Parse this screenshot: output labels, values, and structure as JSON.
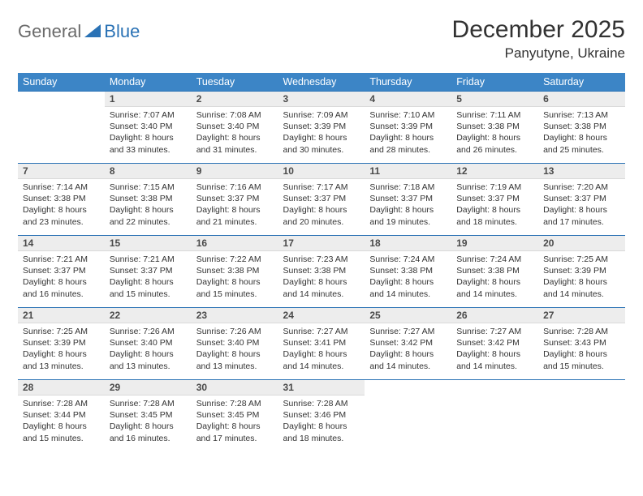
{
  "logo": {
    "part1": "General",
    "part2": "Blue"
  },
  "title": "December 2025",
  "location": "Panyutyne, Ukraine",
  "colors": {
    "header_bg": "#3c85c6",
    "header_text": "#ffffff",
    "rule": "#2a72b5",
    "daynum_bg": "#ededed",
    "text": "#333333"
  },
  "weekdays": [
    "Sunday",
    "Monday",
    "Tuesday",
    "Wednesday",
    "Thursday",
    "Friday",
    "Saturday"
  ],
  "weeks": [
    [
      null,
      {
        "n": "1",
        "sr": "7:07 AM",
        "ss": "3:40 PM",
        "dl": "8 hours and 33 minutes."
      },
      {
        "n": "2",
        "sr": "7:08 AM",
        "ss": "3:40 PM",
        "dl": "8 hours and 31 minutes."
      },
      {
        "n": "3",
        "sr": "7:09 AM",
        "ss": "3:39 PM",
        "dl": "8 hours and 30 minutes."
      },
      {
        "n": "4",
        "sr": "7:10 AM",
        "ss": "3:39 PM",
        "dl": "8 hours and 28 minutes."
      },
      {
        "n": "5",
        "sr": "7:11 AM",
        "ss": "3:38 PM",
        "dl": "8 hours and 26 minutes."
      },
      {
        "n": "6",
        "sr": "7:13 AM",
        "ss": "3:38 PM",
        "dl": "8 hours and 25 minutes."
      }
    ],
    [
      {
        "n": "7",
        "sr": "7:14 AM",
        "ss": "3:38 PM",
        "dl": "8 hours and 23 minutes."
      },
      {
        "n": "8",
        "sr": "7:15 AM",
        "ss": "3:38 PM",
        "dl": "8 hours and 22 minutes."
      },
      {
        "n": "9",
        "sr": "7:16 AM",
        "ss": "3:37 PM",
        "dl": "8 hours and 21 minutes."
      },
      {
        "n": "10",
        "sr": "7:17 AM",
        "ss": "3:37 PM",
        "dl": "8 hours and 20 minutes."
      },
      {
        "n": "11",
        "sr": "7:18 AM",
        "ss": "3:37 PM",
        "dl": "8 hours and 19 minutes."
      },
      {
        "n": "12",
        "sr": "7:19 AM",
        "ss": "3:37 PM",
        "dl": "8 hours and 18 minutes."
      },
      {
        "n": "13",
        "sr": "7:20 AM",
        "ss": "3:37 PM",
        "dl": "8 hours and 17 minutes."
      }
    ],
    [
      {
        "n": "14",
        "sr": "7:21 AM",
        "ss": "3:37 PM",
        "dl": "8 hours and 16 minutes."
      },
      {
        "n": "15",
        "sr": "7:21 AM",
        "ss": "3:37 PM",
        "dl": "8 hours and 15 minutes."
      },
      {
        "n": "16",
        "sr": "7:22 AM",
        "ss": "3:38 PM",
        "dl": "8 hours and 15 minutes."
      },
      {
        "n": "17",
        "sr": "7:23 AM",
        "ss": "3:38 PM",
        "dl": "8 hours and 14 minutes."
      },
      {
        "n": "18",
        "sr": "7:24 AM",
        "ss": "3:38 PM",
        "dl": "8 hours and 14 minutes."
      },
      {
        "n": "19",
        "sr": "7:24 AM",
        "ss": "3:38 PM",
        "dl": "8 hours and 14 minutes."
      },
      {
        "n": "20",
        "sr": "7:25 AM",
        "ss": "3:39 PM",
        "dl": "8 hours and 14 minutes."
      }
    ],
    [
      {
        "n": "21",
        "sr": "7:25 AM",
        "ss": "3:39 PM",
        "dl": "8 hours and 13 minutes."
      },
      {
        "n": "22",
        "sr": "7:26 AM",
        "ss": "3:40 PM",
        "dl": "8 hours and 13 minutes."
      },
      {
        "n": "23",
        "sr": "7:26 AM",
        "ss": "3:40 PM",
        "dl": "8 hours and 13 minutes."
      },
      {
        "n": "24",
        "sr": "7:27 AM",
        "ss": "3:41 PM",
        "dl": "8 hours and 14 minutes."
      },
      {
        "n": "25",
        "sr": "7:27 AM",
        "ss": "3:42 PM",
        "dl": "8 hours and 14 minutes."
      },
      {
        "n": "26",
        "sr": "7:27 AM",
        "ss": "3:42 PM",
        "dl": "8 hours and 14 minutes."
      },
      {
        "n": "27",
        "sr": "7:28 AM",
        "ss": "3:43 PM",
        "dl": "8 hours and 15 minutes."
      }
    ],
    [
      {
        "n": "28",
        "sr": "7:28 AM",
        "ss": "3:44 PM",
        "dl": "8 hours and 15 minutes."
      },
      {
        "n": "29",
        "sr": "7:28 AM",
        "ss": "3:45 PM",
        "dl": "8 hours and 16 minutes."
      },
      {
        "n": "30",
        "sr": "7:28 AM",
        "ss": "3:45 PM",
        "dl": "8 hours and 17 minutes."
      },
      {
        "n": "31",
        "sr": "7:28 AM",
        "ss": "3:46 PM",
        "dl": "8 hours and 18 minutes."
      },
      null,
      null,
      null
    ]
  ],
  "labels": {
    "sunrise": "Sunrise: ",
    "sunset": "Sunset: ",
    "daylight": "Daylight: "
  }
}
